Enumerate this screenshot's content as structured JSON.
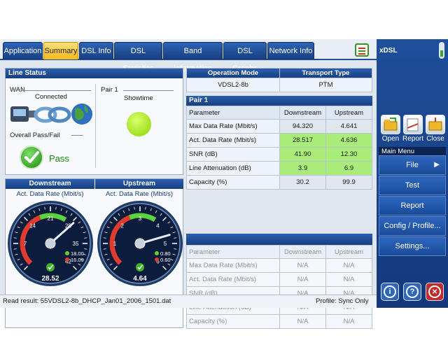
{
  "tabs": [
    "Application",
    "Summary",
    "DSL Info",
    "DSL Statistics",
    "Band Information",
    "DSL Graphs",
    "Network Info"
  ],
  "active_tab": "Summary",
  "line_status": {
    "title": "Line Status",
    "wan_label": "WAN",
    "wan_state": "Connected",
    "pair_label": "Pair 1",
    "pair_state": "Showtime",
    "overall_label": "Overall Pass/Fail",
    "result": "Pass"
  },
  "op_mode": {
    "headers": [
      "Operation Mode",
      "Transport Type"
    ],
    "values": [
      "VDSL2-8b",
      "PTM"
    ]
  },
  "pair1": {
    "title": "Pair 1",
    "columns": [
      "Parameter",
      "Downstream",
      "Upstream"
    ],
    "rows": [
      {
        "param": "Max Data Rate (Mbit/s)",
        "down": "94.320",
        "up": "4.641",
        "highlight": false
      },
      {
        "param": "Act. Data Rate (Mbit/s)",
        "down": "28.517",
        "up": "4.636",
        "highlight": true
      },
      {
        "param": "SNR (dB)",
        "down": "41.90",
        "up": "12.30",
        "highlight": true
      },
      {
        "param": "Line Attenuation (dB)",
        "down": "3.9",
        "up": "6.9",
        "highlight": true
      },
      {
        "param": "Capacity (%)",
        "down": "30.2",
        "up": "99.9",
        "highlight": false
      }
    ]
  },
  "pair2": {
    "columns": [
      "Parameter",
      "Downstream",
      "Upstream"
    ],
    "rows": [
      {
        "param": "Max Data Rate (Mbit/s)",
        "down": "N/A",
        "up": "N/A"
      },
      {
        "param": "Act. Data Rate (Mbit/s)",
        "down": "N/A",
        "up": "N/A"
      },
      {
        "param": "SNR (dB)",
        "down": "N/A",
        "up": "N/A"
      },
      {
        "param": "Line Attenuation (dB)",
        "down": "N/A",
        "up": "N/A"
      },
      {
        "param": "Capacity (%)",
        "down": "N/A",
        "up": "N/A"
      }
    ]
  },
  "gauges": [
    {
      "title": "Downstream",
      "label": "Act. Data Rate (Mbit/s)",
      "value": "28.52",
      "needle": 28.52,
      "max": 42,
      "ticks": [
        "0",
        "7",
        "14",
        "21",
        "28",
        "35",
        "42"
      ],
      "limit_high": "18.00",
      "limit_low": "16.00"
    },
    {
      "title": "Upstream",
      "label": "Act. Data Rate (Mbit/s)",
      "value": "4.64",
      "needle": 4.64,
      "max": 6,
      "ticks": [
        "0",
        "1",
        "2",
        "3",
        "4",
        "5",
        "6"
      ],
      "limit_high": "0.80",
      "limit_low": "0.60"
    }
  ],
  "sidebar": {
    "title": "xDSL",
    "tools": [
      "Open",
      "Report",
      "Close"
    ],
    "menu_title": "Main Menu",
    "menu": [
      "File",
      "Test Configuration...",
      "Report",
      "Config / Profile...",
      "Settings..."
    ],
    "file_arrow": "▶"
  },
  "bottom_icons": [
    "i",
    "?",
    "×"
  ],
  "status": {
    "read_result": "Read result: 55VDSL2-8b_DHCP_Jan01_2006_1501.dat",
    "profile": "Profile: Sync Only"
  },
  "colors": {
    "accent": "#1d4f9a",
    "pass": "#2fa51e",
    "highlight": "#a9ec7a",
    "active_tab": "#f5b91d"
  }
}
